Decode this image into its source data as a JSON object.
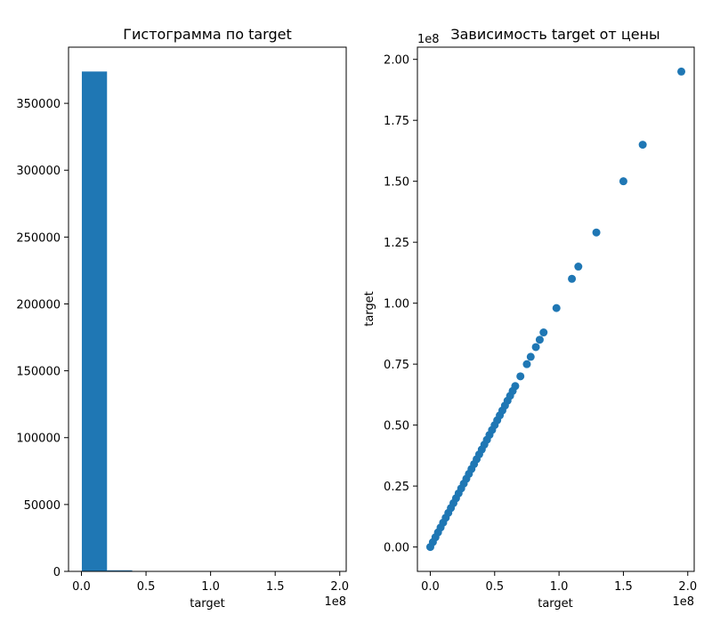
{
  "colors": {
    "accent": "#1f77b4"
  },
  "chart_data": [
    {
      "type": "bar",
      "title": "Гистограмма по target",
      "xlabel": "target",
      "ylabel": "",
      "x_offset_label": "1e8",
      "xlim": [
        -0.1,
        2.05
      ],
      "ylim": [
        0,
        392000
      ],
      "xticks": [
        0.0,
        0.5,
        1.0,
        1.5,
        2.0
      ],
      "xtick_labels": [
        "0.0",
        "0.5",
        "1.0",
        "1.5",
        "2.0"
      ],
      "yticks": [
        0,
        50000,
        100000,
        150000,
        200000,
        250000,
        300000,
        350000
      ],
      "ytick_labels": [
        "0",
        "50000",
        "100000",
        "150000",
        "200000",
        "250000",
        "300000",
        "350000"
      ],
      "bins": [
        {
          "x0": 0.003,
          "x1": 0.198,
          "count": 373800
        },
        {
          "x0": 0.198,
          "x1": 0.393,
          "count": 800
        },
        {
          "x0": 0.393,
          "x1": 0.588,
          "count": 120
        },
        {
          "x0": 0.588,
          "x1": 0.783,
          "count": 40
        },
        {
          "x0": 0.783,
          "x1": 0.978,
          "count": 10
        },
        {
          "x0": 0.978,
          "x1": 1.173,
          "count": 4
        },
        {
          "x0": 1.173,
          "x1": 1.368,
          "count": 1
        },
        {
          "x0": 1.368,
          "x1": 1.563,
          "count": 1
        },
        {
          "x0": 1.563,
          "x1": 1.758,
          "count": 1
        },
        {
          "x0": 1.758,
          "x1": 1.953,
          "count": 1
        }
      ],
      "grid": false,
      "legend": "none"
    },
    {
      "type": "scatter",
      "title": "Зависимость target от цены",
      "xlabel": "target",
      "ylabel": "target",
      "x_offset_label": "1e8",
      "y_offset_label": "1e8",
      "xlim": [
        -0.1,
        2.05
      ],
      "ylim": [
        -0.1,
        2.05
      ],
      "xticks": [
        0.0,
        0.5,
        1.0,
        1.5,
        2.0
      ],
      "xtick_labels": [
        "0.0",
        "0.5",
        "1.0",
        "1.5",
        "2.0"
      ],
      "yticks": [
        0.0,
        0.25,
        0.5,
        0.75,
        1.0,
        1.25,
        1.5,
        1.75,
        2.0
      ],
      "ytick_labels": [
        "0.00",
        "0.25",
        "0.50",
        "0.75",
        "1.00",
        "1.25",
        "1.50",
        "1.75",
        "2.00"
      ],
      "x": [
        0.0,
        0.02,
        0.04,
        0.06,
        0.08,
        0.1,
        0.12,
        0.14,
        0.16,
        0.18,
        0.2,
        0.22,
        0.24,
        0.26,
        0.28,
        0.3,
        0.32,
        0.34,
        0.36,
        0.38,
        0.4,
        0.42,
        0.44,
        0.46,
        0.48,
        0.5,
        0.52,
        0.54,
        0.56,
        0.58,
        0.6,
        0.62,
        0.64,
        0.66,
        0.7,
        0.75,
        0.78,
        0.82,
        0.85,
        0.88,
        0.98,
        1.1,
        1.15,
        1.29,
        1.5,
        1.65,
        1.95
      ],
      "y": [
        0.0,
        0.02,
        0.04,
        0.06,
        0.08,
        0.1,
        0.12,
        0.14,
        0.16,
        0.18,
        0.2,
        0.22,
        0.24,
        0.26,
        0.28,
        0.3,
        0.32,
        0.34,
        0.36,
        0.38,
        0.4,
        0.42,
        0.44,
        0.46,
        0.48,
        0.5,
        0.52,
        0.54,
        0.56,
        0.58,
        0.6,
        0.62,
        0.64,
        0.66,
        0.7,
        0.75,
        0.78,
        0.82,
        0.85,
        0.88,
        0.98,
        1.1,
        1.15,
        1.29,
        1.5,
        1.65,
        1.95
      ],
      "grid": false,
      "legend": "none"
    }
  ]
}
